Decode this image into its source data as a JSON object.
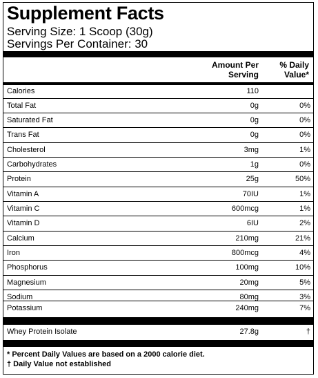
{
  "title": "Supplement Facts",
  "serving_size": "Serving Size: 1 Scoop (30g)",
  "servings_per_container": "Servings Per Container: 30",
  "headers": {
    "amount_line1": "Amount Per",
    "amount_line2": "Serving",
    "dv_line1": "% Daily",
    "dv_line2": "Value*"
  },
  "nutrients": [
    {
      "name": "Calories",
      "amount": "110",
      "dv": ""
    },
    {
      "name": "Total Fat",
      "amount": "0g",
      "dv": "0%"
    },
    {
      "name": "Saturated Fat",
      "amount": "0g",
      "dv": "0%"
    },
    {
      "name": "Trans Fat",
      "amount": "0g",
      "dv": "0%"
    },
    {
      "name": "Cholesterol",
      "amount": "3mg",
      "dv": "1%"
    },
    {
      "name": "Carbohydrates",
      "amount": "1g",
      "dv": "0%"
    },
    {
      "name": "Protein",
      "amount": "25g",
      "dv": "50%"
    },
    {
      "name": "Vitamin A",
      "amount": "70IU",
      "dv": "1%"
    },
    {
      "name": "Vitamin C",
      "amount": "600mcg",
      "dv": "1%"
    },
    {
      "name": "Vitamin D",
      "amount": "6IU",
      "dv": "2%"
    },
    {
      "name": "Calcium",
      "amount": "210mg",
      "dv": "21%"
    },
    {
      "name": "Iron",
      "amount": "800mcg",
      "dv": "4%"
    },
    {
      "name": "Phosphorus",
      "amount": "100mg",
      "dv": "10%"
    },
    {
      "name": "Magnesium",
      "amount": "20mg",
      "dv": "5%"
    },
    {
      "name": "Sodium",
      "amount": "80mg",
      "dv": "3%"
    },
    {
      "name": "Potassium",
      "amount": "240mg",
      "dv": "7%"
    }
  ],
  "other_ingredients": [
    {
      "name": "Whey Protein Isolate",
      "amount": "27.8g",
      "dv": "†"
    }
  ],
  "footnotes": {
    "daily_values": "* Percent Daily Values are based on a 2000 calorie diet.",
    "not_established": "† Daily Value not established"
  }
}
